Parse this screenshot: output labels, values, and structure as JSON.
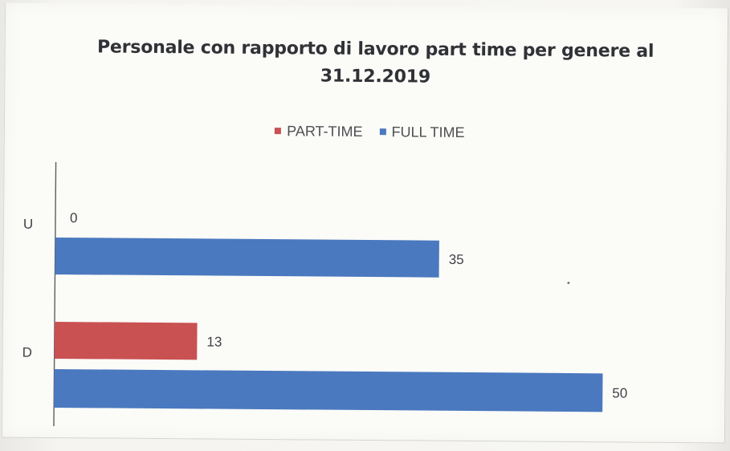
{
  "chart_data": {
    "type": "bar",
    "orientation": "horizontal",
    "title": "Personale con rapporto di lavoro part time per genere al 31.12.2019",
    "categories": [
      "U",
      "D"
    ],
    "series": [
      {
        "name": "PART-TIME",
        "values": [
          0,
          13
        ],
        "color": "#c95152"
      },
      {
        "name": "FULL TIME",
        "values": [
          35,
          50
        ],
        "color": "#4a79bf"
      }
    ],
    "xlim": [
      0,
      50
    ],
    "grid": false,
    "legend_position": "top"
  }
}
